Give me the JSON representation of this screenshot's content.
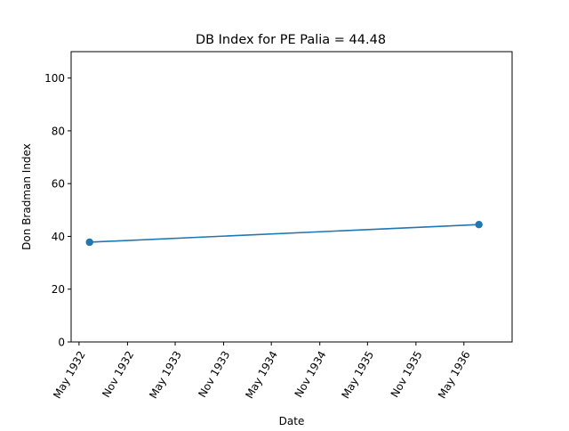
{
  "chart_data": {
    "type": "line",
    "title": "DB Index for PE Palia = 44.48",
    "xlabel": "Date",
    "ylabel": "Don Bradman Index",
    "x_tick_labels": [
      "May 1932",
      "Nov 1932",
      "May 1933",
      "Nov 1933",
      "May 1934",
      "Nov 1934",
      "May 1935",
      "Nov 1935",
      "May 1936"
    ],
    "y_tick_labels": [
      "0",
      "20",
      "40",
      "60",
      "80",
      "100"
    ],
    "ylim": [
      0,
      110
    ],
    "xlim": [
      "1932-04-01",
      "1936-10-31"
    ],
    "series": [
      {
        "points": [
          {
            "x": "1932-06-10",
            "y": 37.8
          },
          {
            "x": "1936-06-27",
            "y": 44.48
          }
        ],
        "color": "#1f77b4",
        "marker": "circle"
      }
    ],
    "grid": false,
    "legend": "none"
  }
}
